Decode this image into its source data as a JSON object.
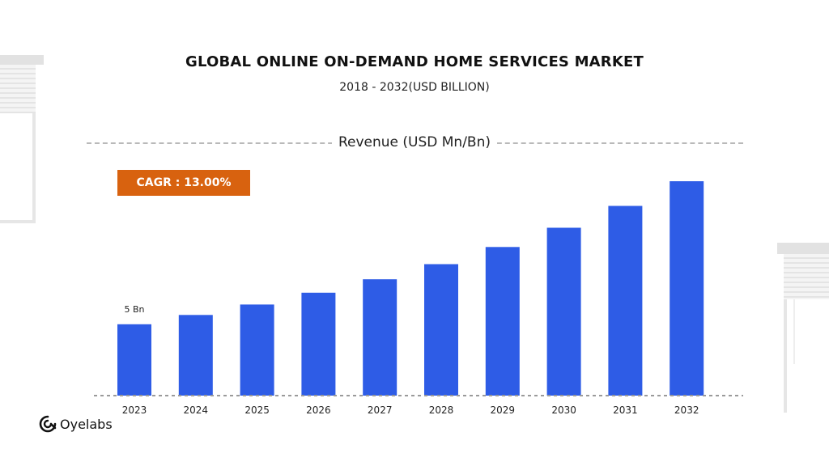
{
  "title": "GLOBAL ONLINE ON-DEMAND HOME SERVICES MARKET",
  "subtitle": "2018 - 2032(USD BILLION)",
  "series_label": "Revenue (USD Mn/Bn)",
  "cagr_label": "CAGR : 13.00%",
  "colors": {
    "bar": "#2e5ce6",
    "cagr": "#d8620f",
    "baseline": "#9a9a9a",
    "dash": "#b9b9b9"
  },
  "brand": {
    "name": "Oyelabs",
    "icon": "oyelabs-logo-icon"
  },
  "chart_data": {
    "type": "bar",
    "title": "GLOBAL ONLINE ON-DEMAND HOME SERVICES MARKET",
    "subtitle": "2018 - 2032(USD BILLION)",
    "ylabel": "Revenue (USD Mn/Bn)",
    "categories": [
      "2023",
      "2024",
      "2025",
      "2026",
      "2027",
      "2028",
      "2029",
      "2030",
      "2031",
      "2032"
    ],
    "values": [
      5,
      5.65,
      6.38,
      7.21,
      8.15,
      9.21,
      10.41,
      11.76,
      13.29,
      15.02
    ],
    "data_labels": [
      "5 Bn",
      "",
      "",
      "",
      "",
      "",
      "",
      "",
      "",
      ""
    ],
    "ylim": [
      0,
      15.02
    ],
    "grid": false,
    "legend": "none",
    "annotation": "CAGR : 13.00%"
  }
}
